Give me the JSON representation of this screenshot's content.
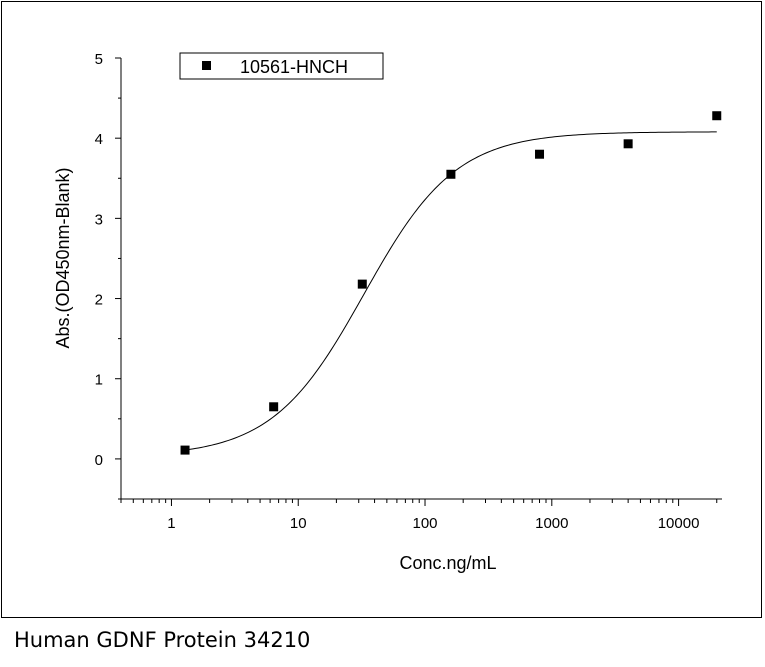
{
  "caption": "Human GDNF Protein 34210",
  "chart_data": {
    "type": "scatter",
    "x_scale": "log",
    "xlabel": "Conc.ng/mL",
    "ylabel": "Abs.(OD450nm-Blank)",
    "xlim": [
      0.4,
      22000
    ],
    "ylim": [
      -0.5,
      5
    ],
    "x_ticks": [
      1,
      10,
      100,
      1000,
      10000
    ],
    "x_tick_labels": [
      "1",
      "10",
      "100",
      "1000",
      "10000"
    ],
    "y_ticks": [
      0,
      1,
      2,
      3,
      4,
      5
    ],
    "y_tick_labels": [
      "0",
      "1",
      "2",
      "3",
      "4",
      "5"
    ],
    "legend_position": "top-left",
    "grid": false,
    "series": [
      {
        "name": "10561-HNCH",
        "marker": "square",
        "color": "#000000",
        "x": [
          1.28,
          6.4,
          32,
          160,
          800,
          4000,
          20000
        ],
        "y": [
          0.11,
          0.65,
          2.18,
          3.55,
          3.8,
          3.93,
          4.28
        ]
      }
    ],
    "fit_curve": {
      "model": "4PL",
      "bottom": 0.03,
      "top": 4.08,
      "ec50": 33,
      "hill": 1.2,
      "x_range": [
        1.28,
        20000
      ]
    }
  }
}
